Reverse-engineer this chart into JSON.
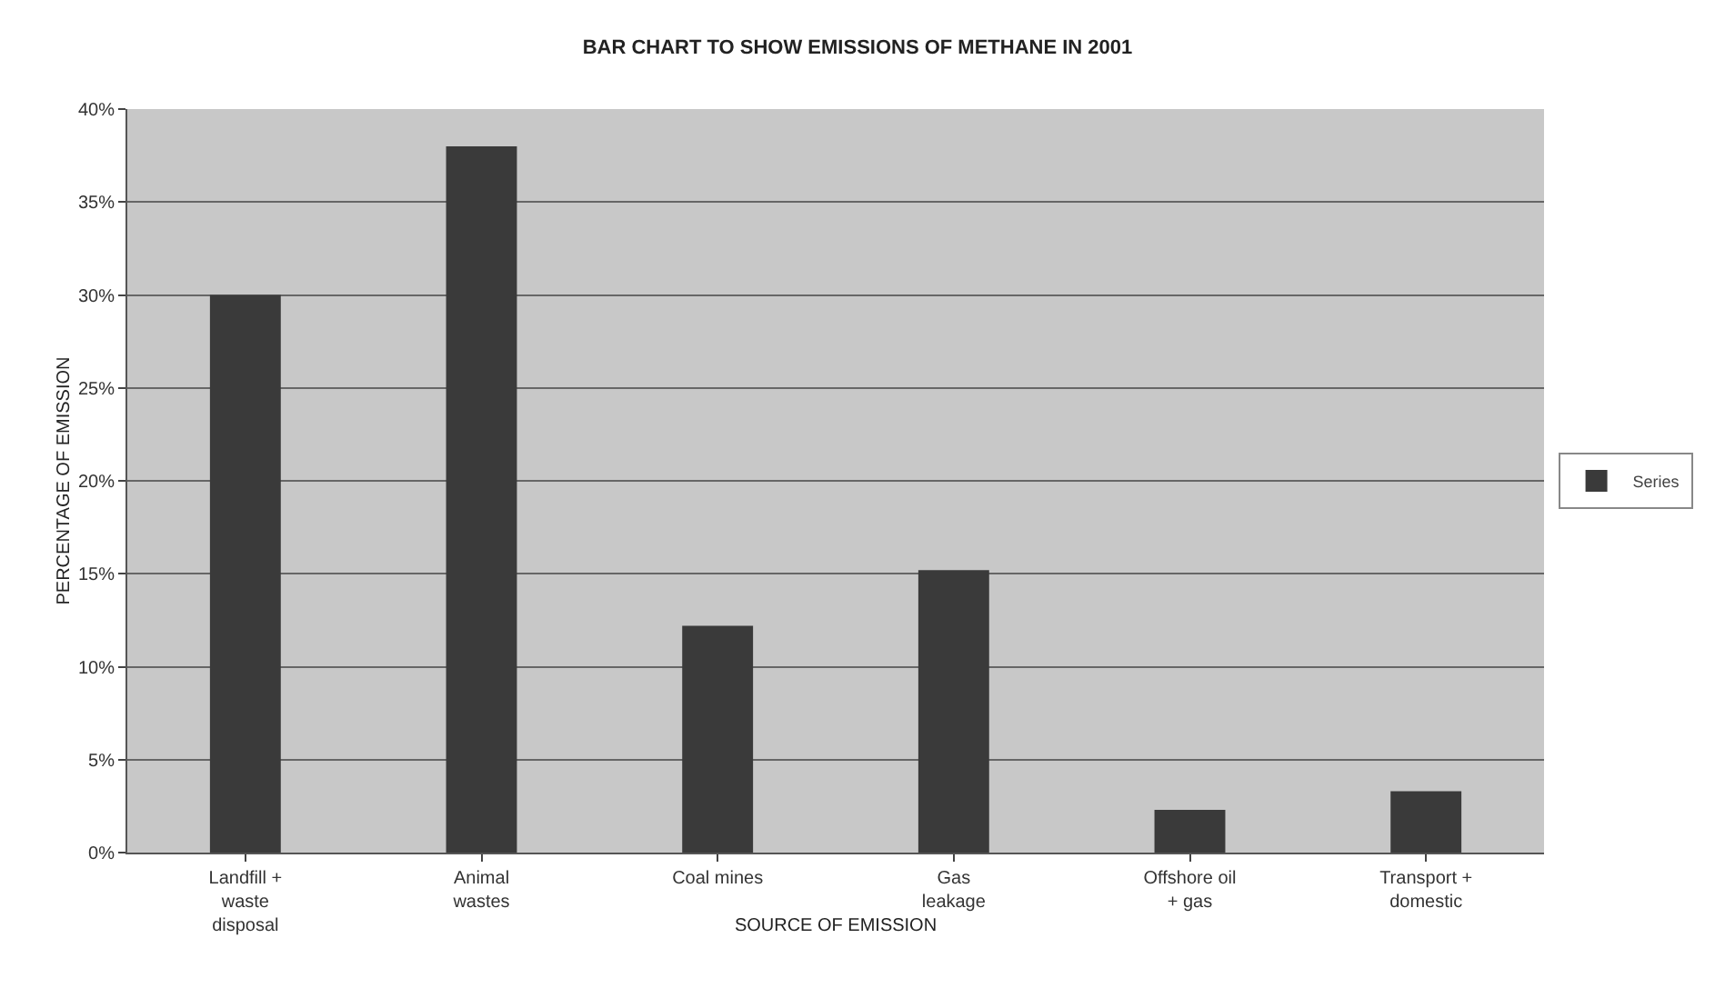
{
  "chart_data": {
    "type": "bar",
    "title": "BAR CHART TO SHOW EMISSIONS OF METHANE IN 2001",
    "xlabel": "SOURCE OF EMISSION",
    "ylabel": "PERCENTAGE OF EMISSION",
    "categories": [
      "Landfill +\nwaste\ndisposal",
      "Animal\nwastes",
      "Coal mines",
      "Gas\nleakage",
      "Offshore oil\n+ gas",
      "Transport +\ndomestic"
    ],
    "series": [
      {
        "name": "Series",
        "color": "#3a3a3a",
        "values": [
          30,
          38,
          12.2,
          15.2,
          2.3,
          3.3
        ]
      }
    ],
    "ylim": [
      0,
      40
    ],
    "yticks": [
      {
        "value": 0,
        "label": "0%"
      },
      {
        "value": 5,
        "label": "5%"
      },
      {
        "value": 10,
        "label": "10%"
      },
      {
        "value": 15,
        "label": "15%"
      },
      {
        "value": 20,
        "label": "20%"
      },
      {
        "value": 25,
        "label": "25%"
      },
      {
        "value": 30,
        "label": "30%"
      },
      {
        "value": 35,
        "label": "35%"
      },
      {
        "value": 40,
        "label": "40%"
      }
    ],
    "grid": "y",
    "legend": "right"
  }
}
